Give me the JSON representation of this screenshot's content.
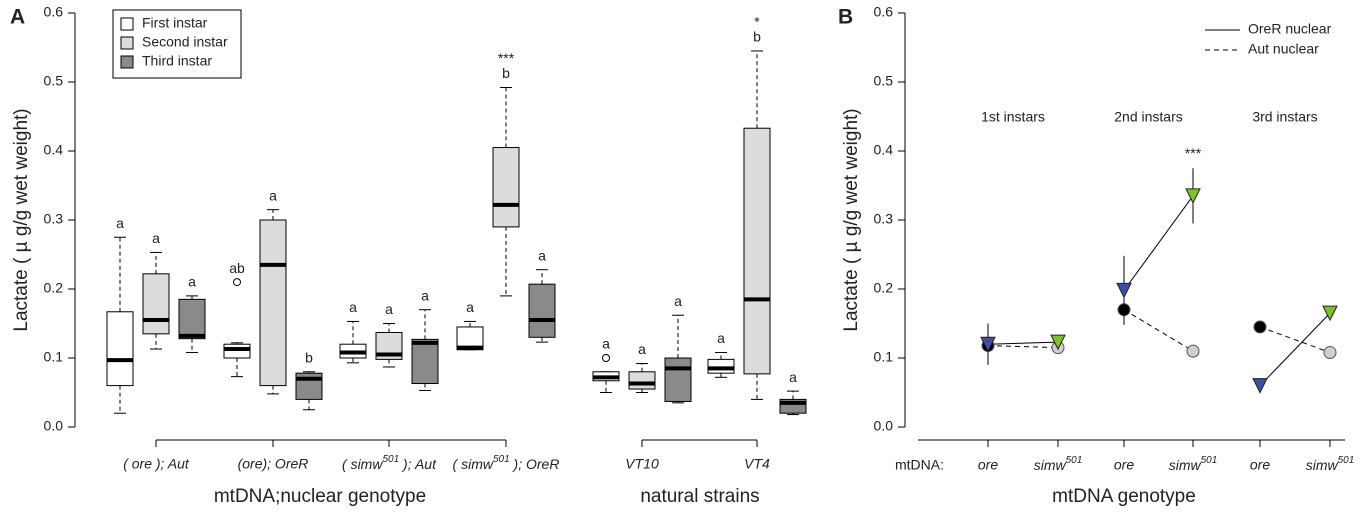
{
  "chart_data": [
    {
      "type": "box",
      "panel_label": "A",
      "ylabel": "Lactate ( µ g/g wet weight)",
      "ylim": [
        0,
        0.6
      ],
      "yticks": [
        {
          "value": 0,
          "label": "0.0"
        },
        0.1,
        0.2,
        0.3,
        0.4,
        0.5,
        0.6
      ],
      "categories": [
        "( ore ); Aut",
        "(ore); OreR",
        "( simw501 ); Aut",
        "( simw501 ); OreR",
        "VT10",
        "VT4"
      ],
      "xlabels": [
        "mtDNA;nuclear genotype",
        "natural strains"
      ],
      "series": [
        {
          "name": "First instar",
          "color": "#ffffff",
          "boxes": [
            {
              "whislo": 0.02,
              "q1": 0.06,
              "med": 0.097,
              "q3": 0.167,
              "whishi": 0.275,
              "fliers": [],
              "letter": "a"
            },
            {
              "whislo": 0.073,
              "q1": 0.1,
              "med": 0.113,
              "q3": 0.12,
              "whishi": 0.122,
              "fliers": [
                0.21
              ],
              "letter": "ab"
            },
            {
              "whislo": 0.093,
              "q1": 0.1,
              "med": 0.108,
              "q3": 0.12,
              "whishi": 0.153,
              "fliers": [],
              "letter": "a"
            },
            {
              "whislo": 0.112,
              "q1": 0.112,
              "med": 0.115,
              "q3": 0.145,
              "whishi": 0.153,
              "fliers": [],
              "letter": "a"
            },
            {
              "whislo": 0.05,
              "q1": 0.067,
              "med": 0.072,
              "q3": 0.08,
              "whishi": 0.08,
              "fliers": [
                0.1
              ],
              "letter": "a"
            },
            {
              "whislo": 0.072,
              "q1": 0.078,
              "med": 0.085,
              "q3": 0.098,
              "whishi": 0.108,
              "fliers": [],
              "letter": "a"
            }
          ]
        },
        {
          "name": "Second instar",
          "color": "#dcdcdc",
          "boxes": [
            {
              "whislo": 0.113,
              "q1": 0.135,
              "med": 0.155,
              "q3": 0.222,
              "whishi": 0.253,
              "fliers": [],
              "letter": "a"
            },
            {
              "whislo": 0.048,
              "q1": 0.06,
              "med": 0.235,
              "q3": 0.3,
              "whishi": 0.315,
              "fliers": [],
              "letter": "a"
            },
            {
              "whislo": 0.087,
              "q1": 0.098,
              "med": 0.105,
              "q3": 0.137,
              "whishi": 0.15,
              "fliers": [],
              "letter": "a"
            },
            {
              "whislo": 0.19,
              "q1": 0.29,
              "med": 0.322,
              "q3": 0.405,
              "whishi": 0.492,
              "fliers": [],
              "letter": "b",
              "stars": "***"
            },
            {
              "whislo": 0.05,
              "q1": 0.055,
              "med": 0.063,
              "q3": 0.08,
              "whishi": 0.092,
              "fliers": [],
              "letter": "a"
            },
            {
              "whislo": 0.04,
              "q1": 0.077,
              "med": 0.185,
              "q3": 0.433,
              "whishi": 0.545,
              "fliers": [],
              "letter": "b",
              "stars": "*"
            }
          ]
        },
        {
          "name": "Third instar",
          "color": "#8a8a8a",
          "boxes": [
            {
              "whislo": 0.108,
              "q1": 0.128,
              "med": 0.132,
              "q3": 0.185,
              "whishi": 0.19,
              "fliers": [],
              "letter": "a"
            },
            {
              "whislo": 0.025,
              "q1": 0.04,
              "med": 0.07,
              "q3": 0.078,
              "whishi": 0.08,
              "fliers": [],
              "letter": "b"
            },
            {
              "whislo": 0.053,
              "q1": 0.063,
              "med": 0.122,
              "q3": 0.127,
              "whishi": 0.17,
              "fliers": [],
              "letter": "a"
            },
            {
              "whislo": 0.123,
              "q1": 0.13,
              "med": 0.155,
              "q3": 0.207,
              "whishi": 0.228,
              "fliers": [],
              "letter": "a"
            },
            {
              "whislo": 0.035,
              "q1": 0.037,
              "med": 0.085,
              "q3": 0.1,
              "whishi": 0.162,
              "fliers": [],
              "letter": "a"
            },
            {
              "whislo": 0.018,
              "q1": 0.02,
              "med": 0.035,
              "q3": 0.04,
              "whishi": 0.052,
              "fliers": [],
              "letter": "a"
            }
          ]
        }
      ]
    },
    {
      "type": "interaction",
      "panel_label": "B",
      "ylabel": "Lactate ( µ g/g wet weight)",
      "xlabel": "mtDNA genotype",
      "x_prefix": "mtDNA:",
      "categories": [
        "ore",
        "simw501",
        "ore",
        "simw501",
        "ore",
        "simw501"
      ],
      "groups": [
        "1st instars",
        "2nd instars",
        "3rd instars"
      ],
      "ylim": [
        0,
        0.6
      ],
      "yticks": [
        {
          "value": 0,
          "label": "0.0"
        },
        0.1,
        0.2,
        0.3,
        0.4,
        0.5,
        0.6
      ],
      "series": [
        {
          "name": "Aut nuclear",
          "linestyle": "dashed",
          "marker": "circle",
          "colors": [
            "#000000",
            "#cfcfcf",
            "#000000",
            "#cfcfcf",
            "#000000",
            "#cfcfcf"
          ],
          "values": [
            0.118,
            0.115,
            0.17,
            0.11,
            0.145,
            0.108
          ],
          "errors": [
            0.005,
            0.005,
            0.02,
            0.008,
            0.008,
            0.008
          ]
        },
        {
          "name": "OreR nuclear",
          "linestyle": "solid",
          "marker": "triangle",
          "colors": [
            "#3f4fa3",
            "#7cc22e",
            "#3f4fa3",
            "#7cc22e",
            "#3f4fa3",
            "#7cc22e"
          ],
          "values": [
            0.12,
            0.123,
            0.198,
            0.335,
            0.06,
            0.165
          ],
          "errors": [
            0.03,
            0.005,
            0.05,
            0.04,
            0.005,
            0.008
          ],
          "annotations": [
            null,
            null,
            null,
            "***",
            null,
            null
          ]
        }
      ]
    }
  ]
}
